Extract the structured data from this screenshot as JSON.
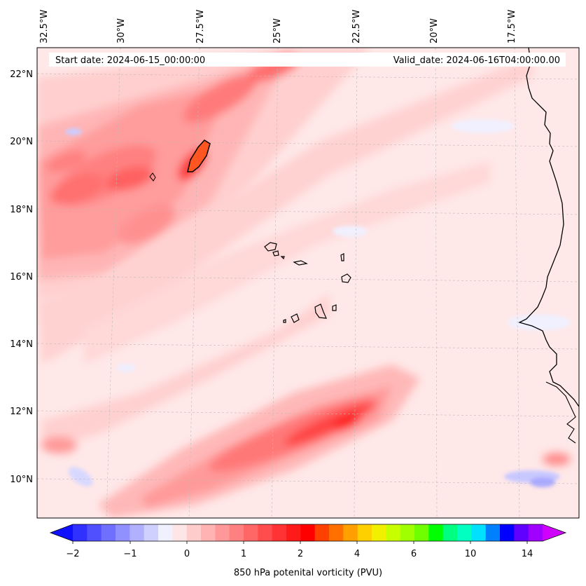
{
  "header": {
    "start_date": "Start date: 2024-06-15_00:00:00",
    "valid_date": "Valid_date: 2024-06-16T04:00:00.00"
  },
  "map": {
    "longitude_labels": [
      "32.5°W",
      "30°W",
      "27.5°W",
      "25°W",
      "22.5°W",
      "20°W",
      "17.5°W"
    ],
    "latitude_labels": [
      "22°N",
      "20°N",
      "18°N",
      "16°N",
      "14°N",
      "12°N",
      "10°N"
    ]
  },
  "colorbar": {
    "title": "850 hPa potenital vorticity (PVU)",
    "tick_labels": [
      "−2",
      "−1",
      "0",
      "1",
      "2",
      "4",
      "6",
      "10",
      "14"
    ],
    "colors": [
      "#1010ff",
      "#3030ff",
      "#5050ff",
      "#7070ff",
      "#9090ff",
      "#b0b0ff",
      "#d0d0ff",
      "#f0f0ff",
      "#ffe6e6",
      "#ffcccc",
      "#ffb3b3",
      "#ff9999",
      "#ff8080",
      "#ff6666",
      "#ff4d4d",
      "#ff3333",
      "#ff1a1a",
      "#ff0000",
      "#ff4000",
      "#ff7000",
      "#ffa000",
      "#ffd000",
      "#f0f000",
      "#c8ff00",
      "#a0ff00",
      "#70ff00",
      "#00ff00",
      "#00ff80",
      "#00ffc0",
      "#00e0ff",
      "#0080ff",
      "#0000ff",
      "#6000ff",
      "#a000ff",
      "#d000ff"
    ]
  }
}
